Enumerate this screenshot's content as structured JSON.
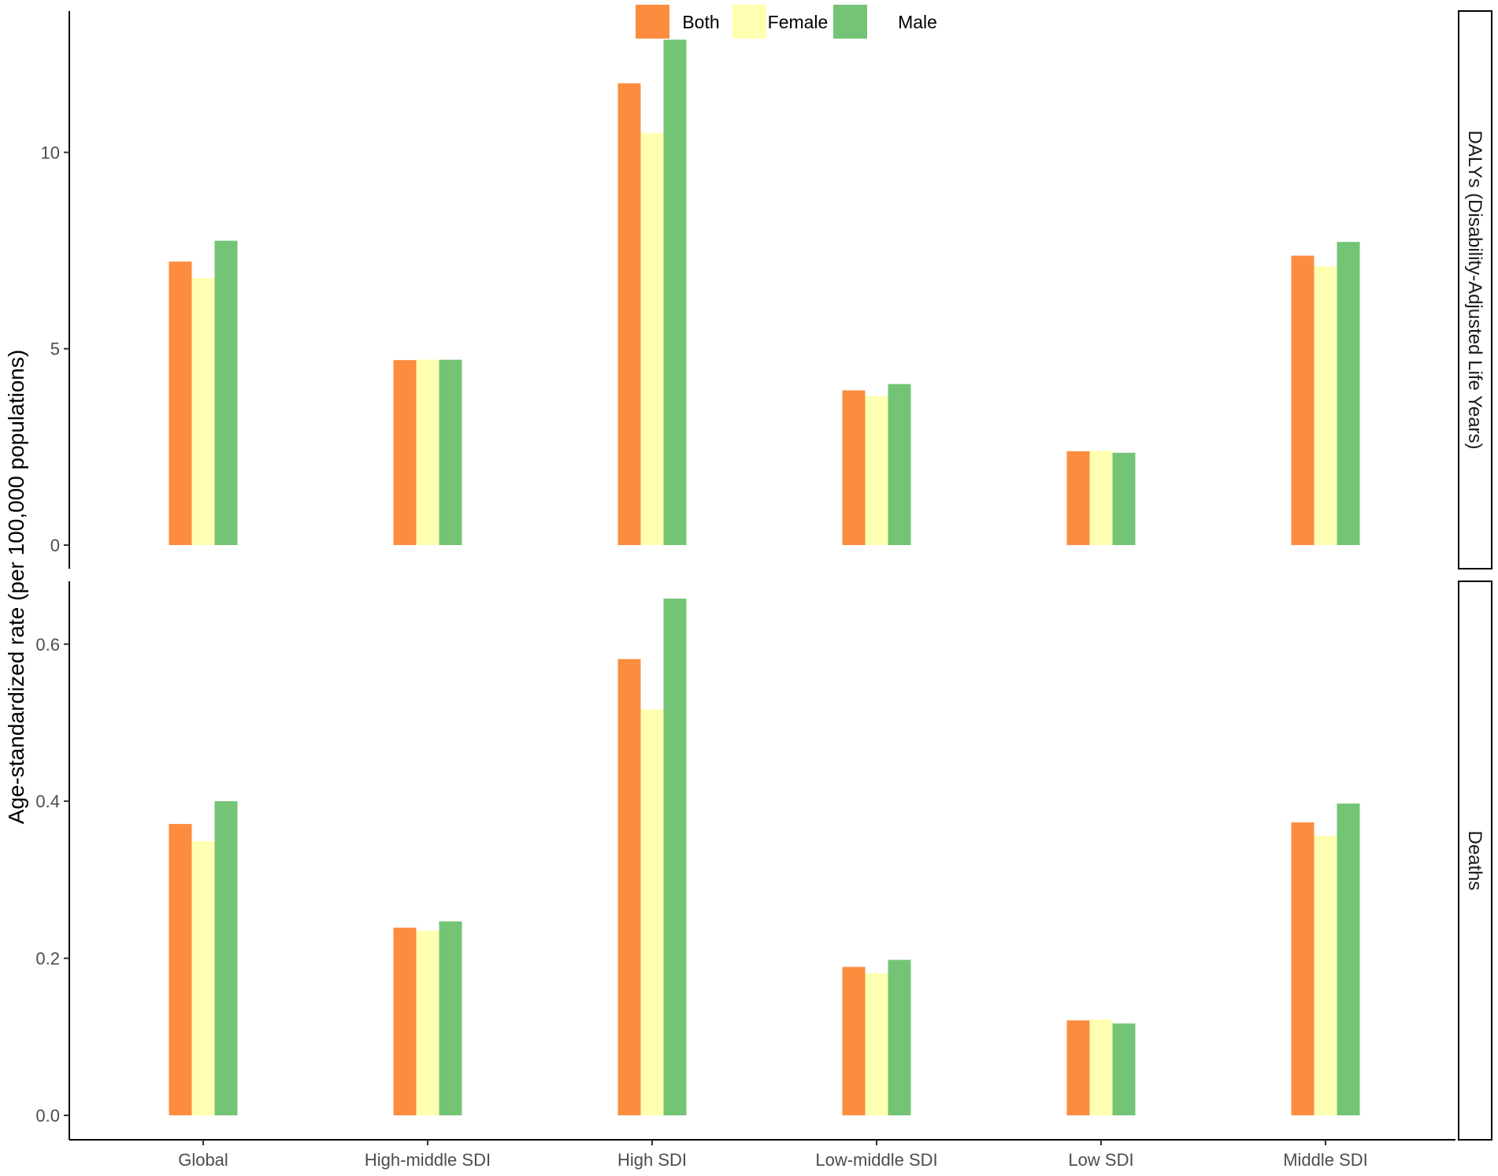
{
  "chart_data": {
    "type": "bar",
    "layout": "faceted-grouped-bar",
    "ylabel": "Age-standardized rate (per 100,000 populations)",
    "xlabel": "",
    "categories": [
      "Global",
      "High-middle SDI",
      "High SDI",
      "Low-middle SDI",
      "Low SDI",
      "Middle SDI"
    ],
    "legend": {
      "placement": "top-center",
      "entries": [
        {
          "name": "Both",
          "color": "#fc8d3f"
        },
        {
          "name": "Female",
          "color": "#ffffb2"
        },
        {
          "name": "Male",
          "color": "#74c476"
        }
      ]
    },
    "grid": false,
    "panels": [
      {
        "strip_label": "DALYs (Disability-Adjusted Life Years)",
        "ylim": [
          0,
          13.6
        ],
        "yticks": [
          0,
          5,
          10
        ],
        "ytick_labels": [
          "0",
          "5",
          "10"
        ],
        "series": [
          {
            "name": "Both",
            "values": [
              7.22,
              4.71,
              11.76,
              3.94,
              2.39,
              7.37
            ]
          },
          {
            "name": "Female",
            "values": [
              6.8,
              4.72,
              10.5,
              3.79,
              2.4,
              7.1
            ]
          },
          {
            "name": "Male",
            "values": [
              7.75,
              4.72,
              12.87,
              4.1,
              2.35,
              7.72
            ]
          }
        ]
      },
      {
        "strip_label": "Deaths",
        "ylim": [
          0,
          0.68
        ],
        "yticks": [
          0.0,
          0.2,
          0.4,
          0.6
        ],
        "ytick_labels": [
          "0.0",
          "0.2",
          "0.4",
          "0.6"
        ],
        "series": [
          {
            "name": "Both",
            "values": [
              0.371,
              0.239,
              0.581,
              0.189,
              0.121,
              0.373
            ]
          },
          {
            "name": "Female",
            "values": [
              0.349,
              0.235,
              0.517,
              0.181,
              0.122,
              0.356
            ]
          },
          {
            "name": "Male",
            "values": [
              0.4,
              0.247,
              0.658,
              0.198,
              0.117,
              0.397
            ]
          }
        ]
      }
    ]
  }
}
